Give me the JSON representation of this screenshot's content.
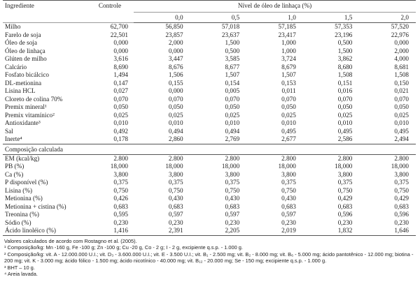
{
  "table": {
    "header": {
      "ingredient": "Ingrediente",
      "control": "Controle",
      "group": "Nível de óleo de linhaça (%)",
      "levels": [
        "0,0",
        "0,5",
        "1,0",
        "1,5",
        "2,0"
      ]
    },
    "rows": [
      [
        "Milho",
        "62,700",
        "56,850",
        "57,018",
        "57,185",
        "57,353",
        "57,520"
      ],
      [
        "Farelo de soja",
        "22,501",
        "23,857",
        "23,637",
        "23,417",
        "23,196",
        "22,976"
      ],
      [
        "Óleo de soja",
        "0,000",
        "2,000",
        "1,500",
        "1,000",
        "0,500",
        "0,000"
      ],
      [
        "Óleo de linhaça",
        "0,000",
        "0,000",
        "0,500",
        "1,000",
        "1,500",
        "2,000"
      ],
      [
        "Glúten de milho",
        "3,616",
        "3,447",
        "3,585",
        "3,724",
        "3,862",
        "4,000"
      ],
      [
        "Calcário",
        "8,690",
        "8,676",
        "8,677",
        "8,679",
        "8,680",
        "8,681"
      ],
      [
        "Fosfato bicálcico",
        "1,494",
        "1,506",
        "1,507",
        "1,507",
        "1,508",
        "1,508"
      ],
      [
        "DL-metionina",
        "0,147",
        "0,155",
        "0,154",
        "0,153",
        "0,151",
        "0,150"
      ],
      [
        "Lisina HCL",
        "0,027",
        "0,000",
        "0,005",
        "0,011",
        "0,016",
        "0,021"
      ],
      [
        "Cloreto de colina 70%",
        "0,070",
        "0,070",
        "0,070",
        "0,070",
        "0,070",
        "0,070"
      ],
      [
        "Premix mineral¹",
        "0,050",
        "0,050",
        "0,050",
        "0,050",
        "0,050",
        "0,050"
      ],
      [
        "Premix vitamínico²",
        "0,025",
        "0,025",
        "0,025",
        "0,025",
        "0,025",
        "0,025"
      ],
      [
        "Antioxidante³",
        "0,010",
        "0,010",
        "0,010",
        "0,010",
        "0,010",
        "0,010"
      ],
      [
        "Sal",
        "0,492",
        "0,494",
        "0,494",
        "0,495",
        "0,495",
        "0,495"
      ],
      [
        "Inerte⁴",
        "0,178",
        "2,860",
        "2,769",
        "2,677",
        "2,586",
        "2,494"
      ]
    ],
    "section": "Composição calculada",
    "composition_rows": [
      [
        "EM (kcal/kg)",
        "2.800",
        "2.800",
        "2.800",
        "2.800",
        "2.800",
        "2.800"
      ],
      [
        "PB (%)",
        "18,000",
        "18,000",
        "18,000",
        "18,000",
        "18,000",
        "18,000"
      ],
      [
        "Ca (%)",
        "3,800",
        "3,800",
        "3,800",
        "3,800",
        "3,800",
        "3,800"
      ],
      [
        "P disponível (%)",
        "0,375",
        "0,375",
        "0,375",
        "0,375",
        "0,375",
        "0,375"
      ],
      [
        "Lisina (%)",
        "0,750",
        "0,750",
        "0,750",
        "0,750",
        "0,750",
        "0,750"
      ],
      [
        "Metionina (%)",
        "0,426",
        "0,430",
        "0,430",
        "0,430",
        "0,429",
        "0,429"
      ],
      [
        "Metionina + cistina (%)",
        "0,683",
        "0,683",
        "0,683",
        "0,683",
        "0,683",
        "0,683"
      ],
      [
        "Treonina (%)",
        "0,595",
        "0,597",
        "0,597",
        "0,597",
        "0,596",
        "0,596"
      ],
      [
        "Sódio (%)",
        "0,230",
        "0,230",
        "0,230",
        "0,230",
        "0,230",
        "0,230"
      ],
      [
        "Ácido linoléico (%)",
        "1,416",
        "2,391",
        "2,205",
        "2,019",
        "1,832",
        "1,646"
      ]
    ]
  },
  "footnotes": [
    "Valores calculados de acordo com Rostagno et al. (2005).",
    "¹ Composição/kg: Mn -160 g, Fe -100 g; Zn -100 g; Cu -20 g, Co - 2 g; I - 2 g, excipiente q.s.p. - 1.000 g.",
    "² Composição/kg: vit. A - 12.000.000 U.I.; vit. D₃ - 3.600.000 U.I.; vit. E - 3.500 U.I.; vit. B₁ - 2.500 mg; vit. B₂ - 8.000 mg; vit. B₆ - 5.000 mg; ácido pantotênico - 12.000 mg; biotina - 200 mg; vit. K - 3.000 mg; ácido fólico - 1.500 mg; ácido nicotínico - 40.000 mg; vit. B₁₂ - 20.000 mg; Se - 150 mg; excipiente q.s.p. - 1.000 g.",
    "³ BHT – 10 g.",
    "⁴ Areia lavada."
  ]
}
